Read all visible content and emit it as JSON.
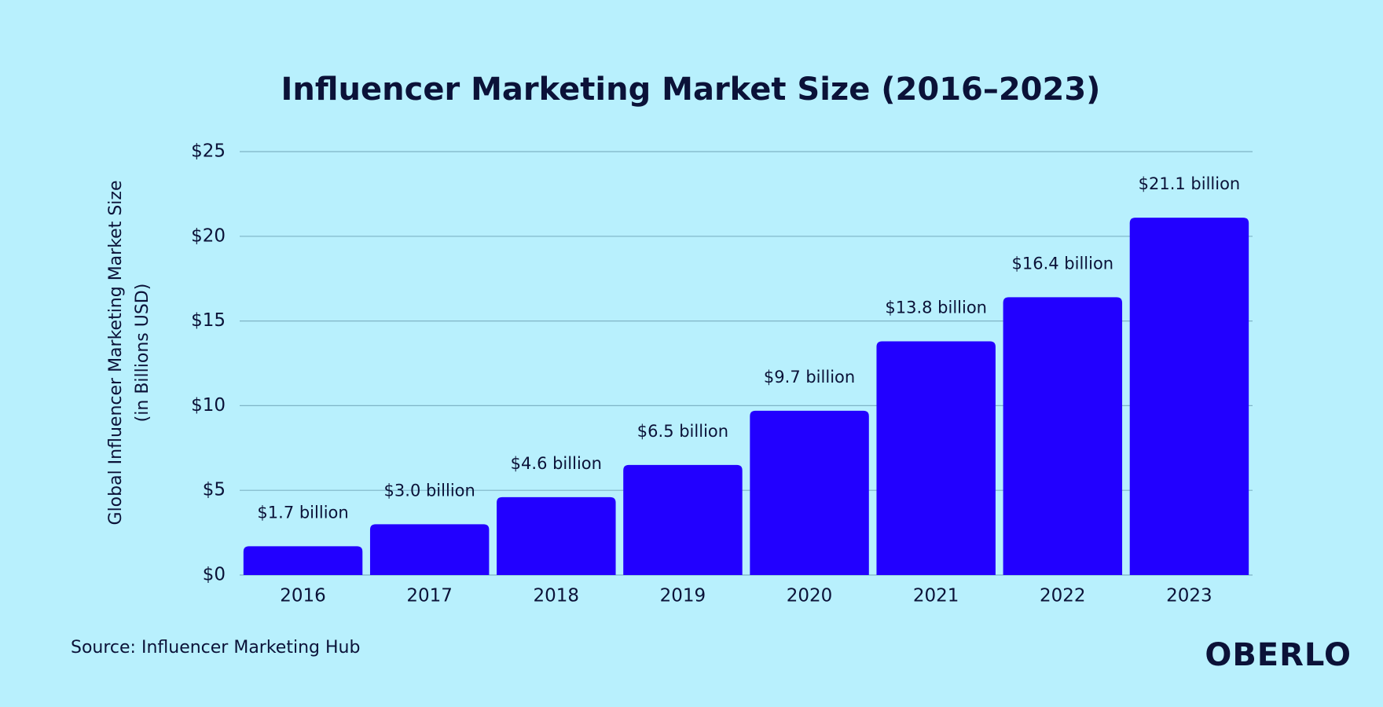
{
  "chart_data": {
    "type": "bar",
    "title": "Influencer Marketing Market Size (2016–2023)",
    "ylabel": [
      "Global Influencer Marketing Market Size",
      "(in Billions USD)"
    ],
    "categories": [
      "2016",
      "2017",
      "2018",
      "2019",
      "2020",
      "2021",
      "2022",
      "2023"
    ],
    "values": [
      1.7,
      3.0,
      4.6,
      6.5,
      9.7,
      13.8,
      16.4,
      21.1
    ],
    "value_labels": [
      "$1.7 billion",
      "$3.0 billion",
      "$4.6 billion",
      "$6.5 billion",
      "$9.7 billion",
      "$13.8 billion",
      "$16.4 billion",
      "$21.1 billion"
    ],
    "color": "#2200ff",
    "ylim": [
      0,
      25
    ],
    "yticks": [
      {
        "value": 0,
        "label": "$0"
      },
      {
        "value": 5,
        "label": "$5"
      },
      {
        "value": 10,
        "label": "$10"
      },
      {
        "value": 15,
        "label": "$15"
      },
      {
        "value": 20,
        "label": "$20"
      },
      {
        "value": 25,
        "label": "$25"
      }
    ],
    "grid": true,
    "source": "Source: Influencer Marketing Hub",
    "brand": "OBERLO"
  }
}
